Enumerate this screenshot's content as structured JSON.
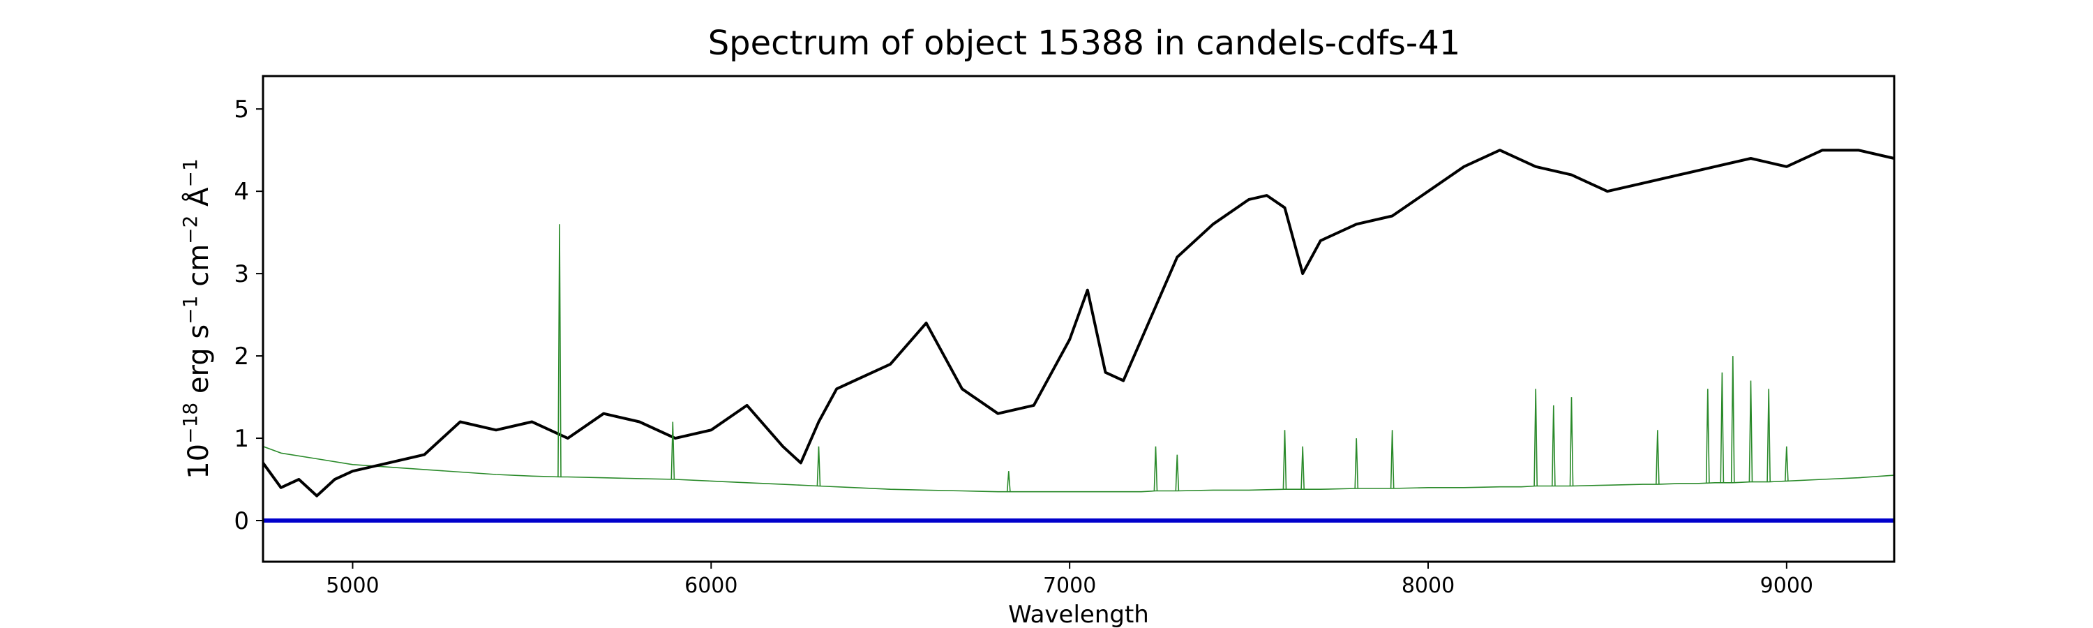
{
  "chart_data": {
    "type": "line",
    "title": "Spectrum of object 15388 in candels-cdfs-41",
    "xlabel": "Wavelength",
    "ylabel": "10",
    "ylabel_exp": "−18",
    "ylabel_units": " erg s",
    "xlim": [
      4750,
      9300
    ],
    "ylim": [
      -0.5,
      5.4
    ],
    "xticks": [
      5000,
      6000,
      7000,
      8000,
      9000
    ],
    "yticks": [
      0,
      1,
      2,
      3,
      4,
      5
    ],
    "grid": false,
    "colors": {
      "flux": "#000000",
      "error": "#2a8a2a",
      "zero": "#0000cc"
    },
    "series": [
      {
        "role": "flux",
        "x": [
          4750,
          4800,
          4850,
          4900,
          4950,
          5000,
          5100,
          5200,
          5300,
          5400,
          5500,
          5600,
          5700,
          5800,
          5900,
          6000,
          6100,
          6200,
          6250,
          6300,
          6350,
          6400,
          6500,
          6600,
          6700,
          6800,
          6900,
          7000,
          7050,
          7100,
          7150,
          7200,
          7300,
          7400,
          7500,
          7550,
          7600,
          7650,
          7700,
          7800,
          7900,
          8000,
          8100,
          8200,
          8300,
          8400,
          8500,
          8600,
          8700,
          8800,
          8900,
          9000,
          9100,
          9200,
          9300
        ],
        "y": [
          0.7,
          0.4,
          0.5,
          0.3,
          0.5,
          0.6,
          0.7,
          0.8,
          1.2,
          1.1,
          1.2,
          1.0,
          1.3,
          1.2,
          1.0,
          1.1,
          1.4,
          0.9,
          0.7,
          1.2,
          1.6,
          1.7,
          1.9,
          2.4,
          1.6,
          1.3,
          1.4,
          2.2,
          2.8,
          1.8,
          1.7,
          2.2,
          3.2,
          3.6,
          3.9,
          3.95,
          3.8,
          3.0,
          3.4,
          3.6,
          3.7,
          4.0,
          4.3,
          4.5,
          4.3,
          4.2,
          4.0,
          4.1,
          4.2,
          4.3,
          4.4,
          4.3,
          4.5,
          4.5,
          4.4
        ]
      },
      {
        "role": "error",
        "x": [
          4750,
          4800,
          4900,
          5000,
          5200,
          5400,
          5500,
          5580,
          5600,
          5700,
          5800,
          5900,
          6000,
          6100,
          6200,
          6300,
          6400,
          6500,
          6600,
          6700,
          6800,
          6900,
          7000,
          7100,
          7200,
          7240,
          7300,
          7400,
          7500,
          7600,
          7650,
          7700,
          7800,
          7900,
          8000,
          8100,
          8200,
          8260,
          8300,
          8400,
          8500,
          8600,
          8640,
          8700,
          8750,
          8800,
          8850,
          8900,
          8950,
          9000,
          9100,
          9200,
          9300
        ],
        "y": [
          0.9,
          0.82,
          0.75,
          0.68,
          0.62,
          0.56,
          0.54,
          0.53,
          0.53,
          0.52,
          0.51,
          0.5,
          0.48,
          0.46,
          0.44,
          0.42,
          0.4,
          0.38,
          0.37,
          0.36,
          0.35,
          0.35,
          0.35,
          0.35,
          0.35,
          0.36,
          0.36,
          0.37,
          0.37,
          0.38,
          0.38,
          0.38,
          0.39,
          0.39,
          0.4,
          0.4,
          0.41,
          0.41,
          0.42,
          0.42,
          0.43,
          0.44,
          0.44,
          0.45,
          0.45,
          0.46,
          0.46,
          0.47,
          0.47,
          0.48,
          0.5,
          0.52,
          0.55
        ]
      },
      {
        "role": "zero",
        "x": [
          4750,
          9300
        ],
        "y": [
          0,
          0
        ]
      }
    ],
    "emission_lines": [
      {
        "x": 5577,
        "y": 3.6
      },
      {
        "x": 5893,
        "y": 1.2
      },
      {
        "x": 6300,
        "y": 0.9
      },
      {
        "x": 6830,
        "y": 0.6
      },
      {
        "x": 7240,
        "y": 0.9
      },
      {
        "x": 7300,
        "y": 0.8
      },
      {
        "x": 7600,
        "y": 1.1
      },
      {
        "x": 7650,
        "y": 0.9
      },
      {
        "x": 7800,
        "y": 1.0
      },
      {
        "x": 7900,
        "y": 1.1
      },
      {
        "x": 8300,
        "y": 1.6
      },
      {
        "x": 8350,
        "y": 1.4
      },
      {
        "x": 8400,
        "y": 1.5
      },
      {
        "x": 8640,
        "y": 1.1
      },
      {
        "x": 8780,
        "y": 1.6
      },
      {
        "x": 8820,
        "y": 1.8
      },
      {
        "x": 8850,
        "y": 2.0
      },
      {
        "x": 8900,
        "y": 1.7
      },
      {
        "x": 8950,
        "y": 1.6
      },
      {
        "x": 9000,
        "y": 0.9
      }
    ]
  }
}
